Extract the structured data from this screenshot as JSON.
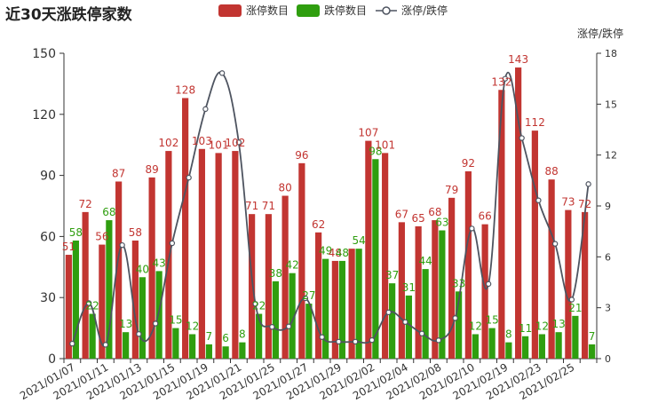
{
  "chart_data": {
    "type": "bar",
    "title": "近30天涨跌停家数",
    "legend_position": "top",
    "series": [
      {
        "name": "涨停数目",
        "type": "bar",
        "color": "#c23531",
        "axis": "left",
        "values": [
          51,
          72,
          56,
          87,
          58,
          89,
          102,
          128,
          103,
          101,
          102,
          71,
          71,
          80,
          96,
          62,
          48,
          54,
          107,
          101,
          67,
          65,
          68,
          79,
          92,
          66,
          132,
          143,
          112,
          88,
          73,
          72
        ]
      },
      {
        "name": "跌停数目",
        "type": "bar",
        "color": "#2f9e0f",
        "axis": "left",
        "values": [
          58,
          22,
          68,
          13,
          40,
          43,
          15,
          12,
          7,
          6,
          8,
          22,
          38,
          42,
          27,
          49,
          48,
          54,
          98,
          37,
          31,
          44,
          63,
          33,
          12,
          15,
          8,
          11,
          12,
          13,
          21,
          7
        ]
      },
      {
        "name": "涨停/跌停",
        "type": "line",
        "color": "#4e5460",
        "axis": "right",
        "values": [
          0.88,
          3.27,
          0.82,
          6.69,
          1.45,
          2.07,
          6.8,
          10.67,
          14.71,
          16.83,
          12.75,
          3.23,
          1.87,
          1.9,
          3.56,
          1.27,
          1.0,
          1.0,
          1.09,
          2.73,
          2.16,
          1.48,
          1.08,
          2.39,
          7.67,
          4.4,
          16.5,
          13.0,
          9.33,
          6.77,
          3.48,
          10.29
        ]
      }
    ],
    "data_labels": {
      "涨停数目": [
        "51",
        "72",
        "56",
        "87",
        "58",
        "89",
        "102",
        "128",
        "103",
        "101",
        "102",
        "71",
        "71",
        "80",
        "96",
        "62",
        "48",
        "",
        "107",
        "101",
        "67",
        "65",
        "68",
        "79",
        "92",
        "66",
        "132",
        "143",
        "112",
        "88",
        "73",
        "72"
      ],
      "跌停数目": [
        "58",
        "22",
        "68",
        "13",
        "40",
        "43",
        "15",
        "12",
        "7",
        "6",
        "8",
        "22",
        "38",
        "42",
        "27",
        "49",
        "48",
        "54",
        "98",
        "37",
        "31",
        "44",
        "63",
        "33",
        "12",
        "15",
        "8",
        "11",
        "12",
        "13",
        "21",
        "7"
      ]
    },
    "x_tick_labels": [
      "2021/01/07",
      "2021/01/11",
      "2021/01/13",
      "2021/01/15",
      "2021/01/19",
      "2021/01/21",
      "2021/01/25",
      "2021/01/27",
      "2021/01/29",
      "2021/02/02",
      "2021/02/04",
      "2021/02/08",
      "2021/02/10",
      "2021/02/19",
      "2021/02/23",
      "2021/02/25"
    ],
    "y_left": {
      "min": 0,
      "max": 150,
      "ticks": [
        "0",
        "30",
        "60",
        "90",
        "120",
        "150"
      ]
    },
    "y_right": {
      "label": "涨停/跌停",
      "min": 0,
      "max": 18,
      "ticks": [
        "0",
        "3",
        "6",
        "9",
        "12",
        "15",
        "18"
      ]
    }
  }
}
